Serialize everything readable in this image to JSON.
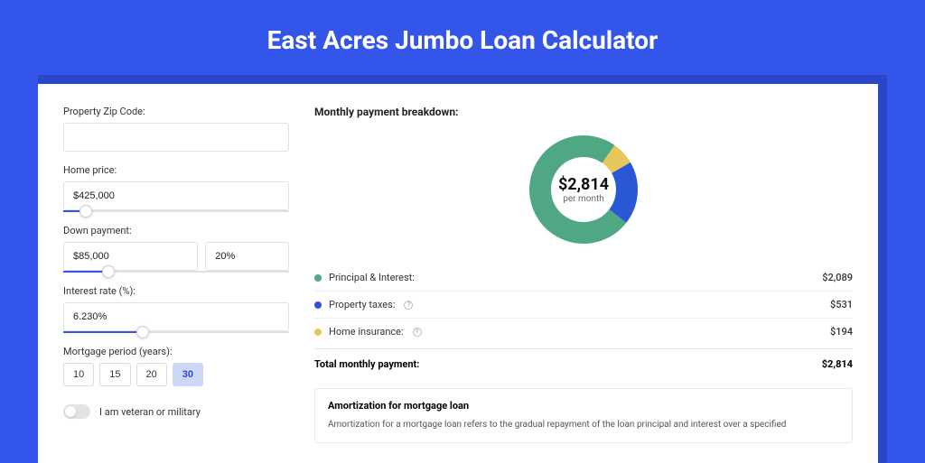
{
  "page": {
    "title": "East Acres Jumbo Loan Calculator",
    "background_color": "#3355e9",
    "shadow_color": "#2a47c9"
  },
  "form": {
    "zip_label": "Property Zip Code:",
    "zip_value": "",
    "home_price_label": "Home price:",
    "home_price_value": "$425,000",
    "home_price_slider_pct": 10,
    "down_payment_label": "Down payment:",
    "down_payment_value": "$85,000",
    "down_payment_pct": "20%",
    "down_payment_slider_pct": 20,
    "interest_label": "Interest rate (%):",
    "interest_value": "6.230%",
    "interest_slider_pct": 35,
    "period_label": "Mortgage period (years):",
    "periods": [
      "10",
      "15",
      "20",
      "30"
    ],
    "period_active_index": 3,
    "veteran_label": "I am veteran or military",
    "veteran_on": false
  },
  "breakdown": {
    "title": "Monthly payment breakdown:",
    "donut": {
      "center_value": "$2,814",
      "center_sub": "per month",
      "slices": [
        {
          "label": "Principal & Interest",
          "value": 2089,
          "pct": 74.2,
          "color": "#4fa883"
        },
        {
          "label": "Property taxes",
          "value": 531,
          "pct": 18.9,
          "color": "#2a57d6"
        },
        {
          "label": "Home insurance",
          "value": 194,
          "pct": 6.9,
          "color": "#e8c75a"
        }
      ],
      "thickness": 24,
      "background": "#ffffff"
    },
    "rows": [
      {
        "label": "Principal & Interest:",
        "value": "$2,089",
        "color": "#4fa883",
        "has_info": false
      },
      {
        "label": "Property taxes:",
        "value": "$531",
        "color": "#2a57d6",
        "has_info": true
      },
      {
        "label": "Home insurance:",
        "value": "$194",
        "color": "#e8c75a",
        "has_info": true
      }
    ],
    "total_label": "Total monthly payment:",
    "total_value": "$2,814"
  },
  "amortization": {
    "title": "Amortization for mortgage loan",
    "text": "Amortization for a mortgage loan refers to the gradual repayment of the loan principal and interest over a specified"
  }
}
